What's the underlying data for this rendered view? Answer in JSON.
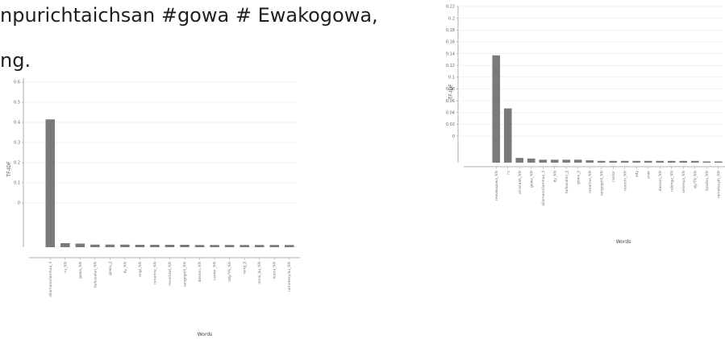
{
  "text": {
    "line1": "npurichtaichsan #gowa # Ewakogowa,",
    "line2": "ng."
  },
  "colors": {
    "bar": "#7a7a7a",
    "grid": "#e6e6e6",
    "axis": "#999999"
  },
  "chart_data": [
    {
      "type": "bar",
      "title": "",
      "xlabel": "Words",
      "ylabel": "TF-IDF",
      "ylim": [
        -0.22,
        0.62
      ],
      "yticks": [
        0,
        0.1,
        0.2,
        0.3,
        0.4,
        0.5,
        0.6
      ],
      "ytick_labels": [
        "0",
        "0.1",
        "0.2",
        "0.3",
        "0.4",
        "0.5",
        "0.6"
      ],
      "categories": [
        "allamano/iamhaa_ll",
        "ru_NN",
        "gowa_NN",
        "ta/kusalen_NN",
        "gowa_JJ",
        "dy_NN",
        "ongi_NN",
        "renerine_NN",
        "reveriawi_NN",
        "rangogolli_NN",
        "dasnon_NN",
        "rantor_NN",
        "ady/YN_NN",
        "rong_JJ",
        "amai_ku_NN",
        "kuoni_NN",
        "rametesy/ku_NN"
      ],
      "values": [
        0.415,
        -0.2,
        -0.202,
        -0.207,
        -0.207,
        -0.207,
        -0.208,
        -0.208,
        -0.208,
        -0.208,
        -0.209,
        -0.209,
        -0.209,
        -0.209,
        -0.209,
        -0.209,
        -0.209
      ],
      "grid": true
    },
    {
      "type": "bar",
      "title": "",
      "xlabel": "Words",
      "ylabel": "TF-IDF",
      "ylim": [
        -0.045,
        0.22
      ],
      "yticks": [
        0,
        0.02,
        0.04,
        0.06,
        0.08,
        0.1,
        0.12,
        0.14,
        0.16,
        0.18,
        0.2,
        0.22
      ],
      "ytick_labels": [
        "0",
        "0.02",
        "0.04",
        "0.06",
        "0.08",
        "0.1",
        "0.12",
        "0.14",
        "0.16",
        "0.18",
        "0.2",
        "0.22"
      ],
      "categories": [
        "rewakogowa_NN",
        "ru",
        "amaraab_NN",
        "gowa_NN",
        "allamano/iamhaa_ll",
        "dy_NN",
        "ta/kusalen_JJ",
        "gowa_JJ",
        "renerine_NN",
        "rangogolli_NN",
        "rantor",
        "renerin_NN",
        "ady",
        "arak",
        "dasnon_NN",
        "rakinga_NN",
        "sesenya_NN",
        "dy/TN_NN",
        "la/sobu_NN",
        "rametesyih_NN"
      ],
      "values": [
        0.137,
        0.047,
        -0.037,
        -0.038,
        -0.04,
        -0.04,
        -0.04,
        -0.04,
        -0.041,
        -0.042,
        -0.042,
        -0.042,
        -0.042,
        -0.042,
        -0.042,
        -0.042,
        -0.042,
        -0.042,
        -0.043,
        -0.043
      ],
      "grid": true
    }
  ]
}
